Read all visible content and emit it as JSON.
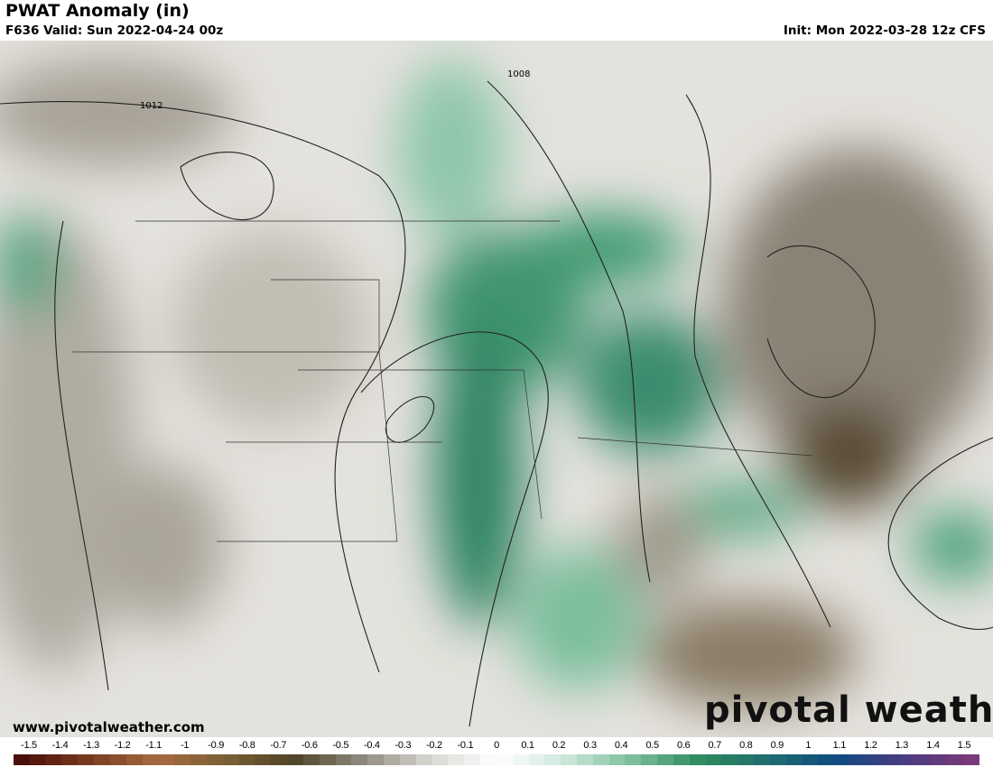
{
  "header": {
    "title": "PWAT Anomaly (in)",
    "valid": "F636 Valid: Sun 2022-04-24 00z",
    "init": "Init: Mon 2022-03-28 12z CFS"
  },
  "map": {
    "contour_labels": [
      "1012",
      "1008"
    ],
    "website": "www.pivotalweather.com",
    "watermark": "pivotal weather"
  },
  "colorbar": {
    "ticks": [
      "-1.5",
      "-1.4",
      "-1.3",
      "-1.2",
      "-1.1",
      "-1",
      "-0.9",
      "-0.8",
      "-0.7",
      "-0.6",
      "-0.5",
      "-0.4",
      "-0.3",
      "-0.2",
      "-0.1",
      "0",
      "0.1",
      "0.2",
      "0.3",
      "0.4",
      "0.5",
      "0.6",
      "0.7",
      "0.8",
      "0.9",
      "1",
      "1.1",
      "1.2",
      "1.3",
      "1.4",
      "1.5"
    ],
    "range": [
      -1.5,
      1.5
    ],
    "stops": [
      "#4a0f08",
      "#7a3a20",
      "#a86a40",
      "#7a6036",
      "#4f4426",
      "#8c887c",
      "#d8d6d2",
      "#ffffff",
      "#cfe8dc",
      "#7cbf9c",
      "#2e8b5e",
      "#1f6e6e",
      "#0f4a82",
      "#4a3c80",
      "#7a3a7a"
    ]
  }
}
